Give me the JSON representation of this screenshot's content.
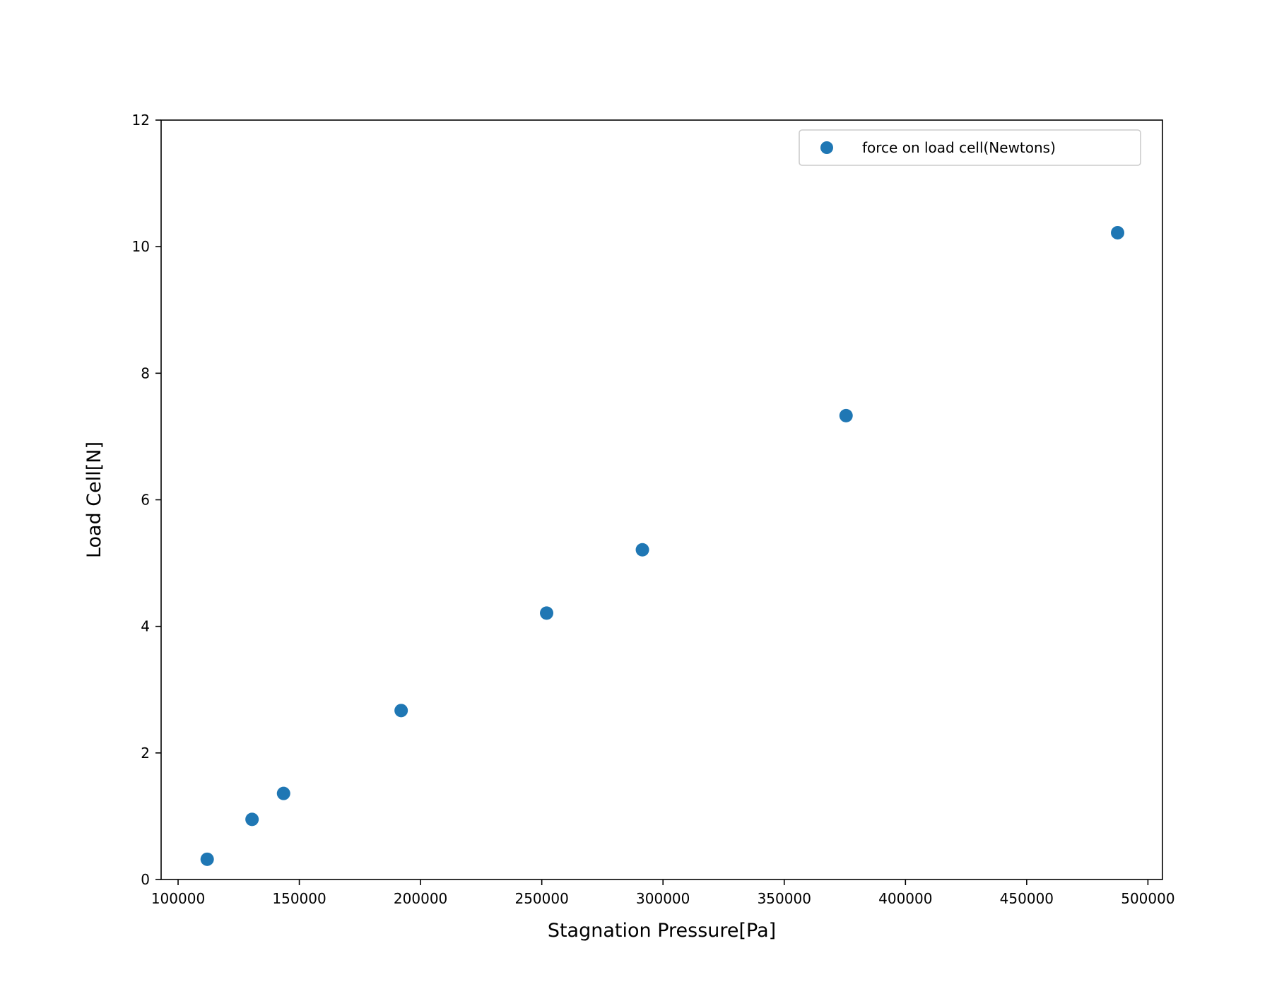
{
  "chart_data": {
    "type": "scatter",
    "xlabel": "Stagnation Pressure[Pa]",
    "ylabel": "Load Cell[N]",
    "xlim": [
      93000,
      506000
    ],
    "ylim": [
      0,
      12
    ],
    "xticks": [
      100000,
      150000,
      200000,
      250000,
      300000,
      350000,
      400000,
      450000,
      500000
    ],
    "xtick_labels": [
      "100000",
      "150000",
      "200000",
      "250000",
      "300000",
      "350000",
      "400000",
      "450000",
      "500000"
    ],
    "yticks": [
      0,
      2,
      4,
      6,
      8,
      10,
      12
    ],
    "ytick_labels": [
      "0",
      "2",
      "4",
      "6",
      "8",
      "10",
      "12"
    ],
    "grid": false,
    "legend_position": "top-right",
    "series": [
      {
        "name": "force on load cell(Newtons)",
        "color": "#1f77b4",
        "marker": "circle",
        "x": [
          112000,
          130500,
          143500,
          192000,
          252000,
          291500,
          375500,
          487500
        ],
        "y": [
          0.32,
          0.95,
          1.36,
          2.67,
          4.21,
          5.21,
          7.33,
          10.22
        ]
      }
    ]
  }
}
